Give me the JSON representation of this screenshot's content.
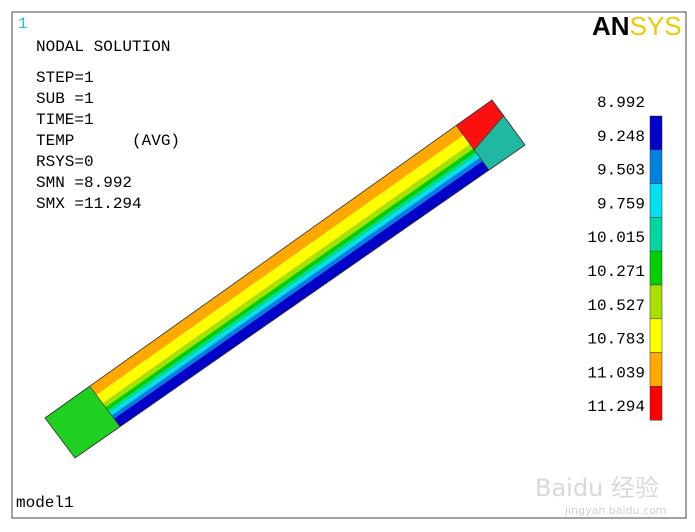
{
  "window_number": "1",
  "header": {
    "title": "NODAL SOLUTION",
    "lines": [
      "STEP=1",
      "SUB =1",
      "TIME=1",
      "TEMP      (AVG)",
      "RSYS=0",
      "SMN =8.992",
      "SMX =11.294"
    ]
  },
  "logo": {
    "first": "AN",
    "second": "SYS"
  },
  "legend": {
    "labels": [
      "8.992",
      "9.248",
      "9.503",
      "9.759",
      "10.015",
      "10.271",
      "10.527",
      "10.783",
      "11.039",
      "11.294"
    ],
    "colors": [
      "#0000c8",
      "#0080e0",
      "#00e0f0",
      "#00d8a0",
      "#00d000",
      "#a8e000",
      "#ffff00",
      "#ffa800",
      "#ff0000"
    ]
  },
  "footer": "model1",
  "watermark": {
    "brand": "Baidu 经验",
    "url": "jingyan.baidu.com"
  }
}
